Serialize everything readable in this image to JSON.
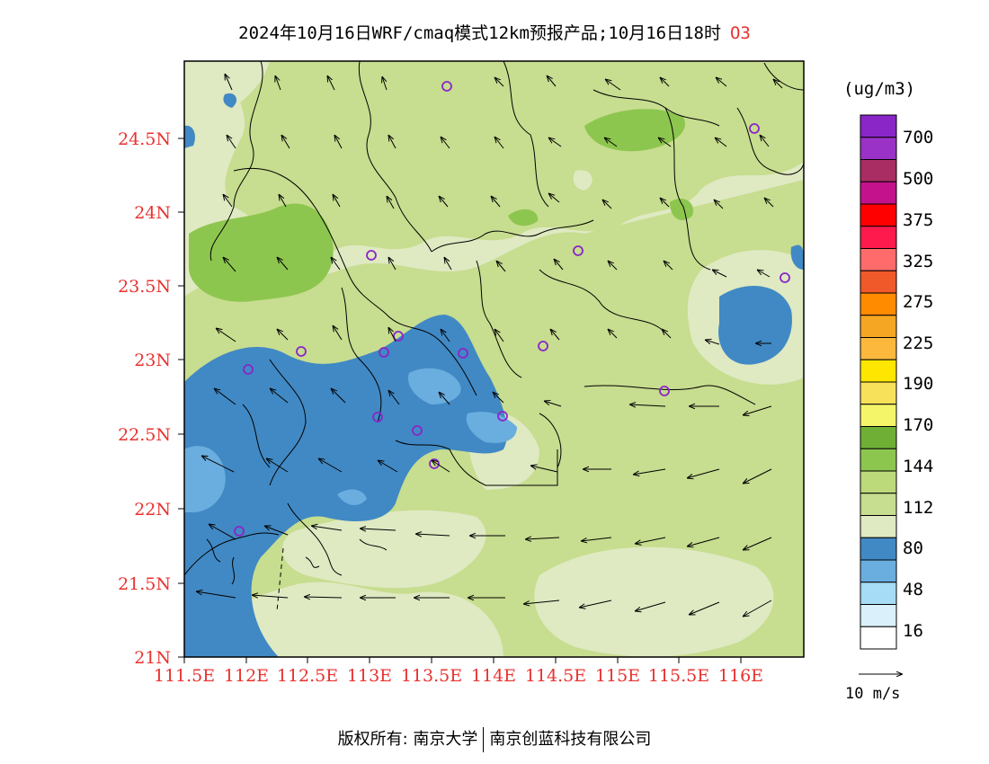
{
  "header": {
    "title": "2024年10月16日WRF/cmaq模式12km预报产品;10月16日18时",
    "pollutant": "O3"
  },
  "map": {
    "lat_ticks": [
      "24.5N",
      "24N",
      "23.5N",
      "23N",
      "22.5N",
      "22N",
      "21.5N",
      "21N"
    ],
    "lon_ticks": [
      "111.5E",
      "112E",
      "112.5E",
      "113E",
      "113.5E",
      "114E",
      "114.5E",
      "115E",
      "115.5E",
      "116E"
    ],
    "colors": {
      "very_low": "#daf0fa",
      "low_16_48": "#a6dcf5",
      "low_48_64": "#6aaedf",
      "low_64_80": "#4189c4",
      "mid_80_96": "#dfe9c2",
      "mid_96_112": "#c7dd8f",
      "mid_112_128": "#bdda7a",
      "high_128_144": "#8dc64f",
      "boundary": "#000000",
      "station": "#8a25c8"
    }
  },
  "colorbar": {
    "unit": "(ug/m3)",
    "labels": [
      "700",
      "500",
      "375",
      "325",
      "275",
      "225",
      "190",
      "170",
      "144",
      "112",
      "80",
      "48",
      "16"
    ],
    "colors": [
      "#8a25c8",
      "#9a32c8",
      "#a92d62",
      "#c4128c",
      "#ff0000",
      "#ff1a4e",
      "#ff6b6b",
      "#f05a2a",
      "#ff8c00",
      "#f5a623",
      "#fbb83c",
      "#ffe600",
      "#f7e15a",
      "#f5f56a",
      "#6faf36",
      "#8dc64f",
      "#bdda7a",
      "#c7dd8f",
      "#dfe9c2",
      "#4189c4",
      "#6aaedf",
      "#a6dcf5",
      "#daf0fa",
      "#ffffff"
    ]
  },
  "wind_reference": {
    "label": "10 m/s"
  },
  "footer": {
    "copyright_left": "版权所有: 南京大学",
    "copyright_right": "南京创蓝科技有限公司"
  }
}
